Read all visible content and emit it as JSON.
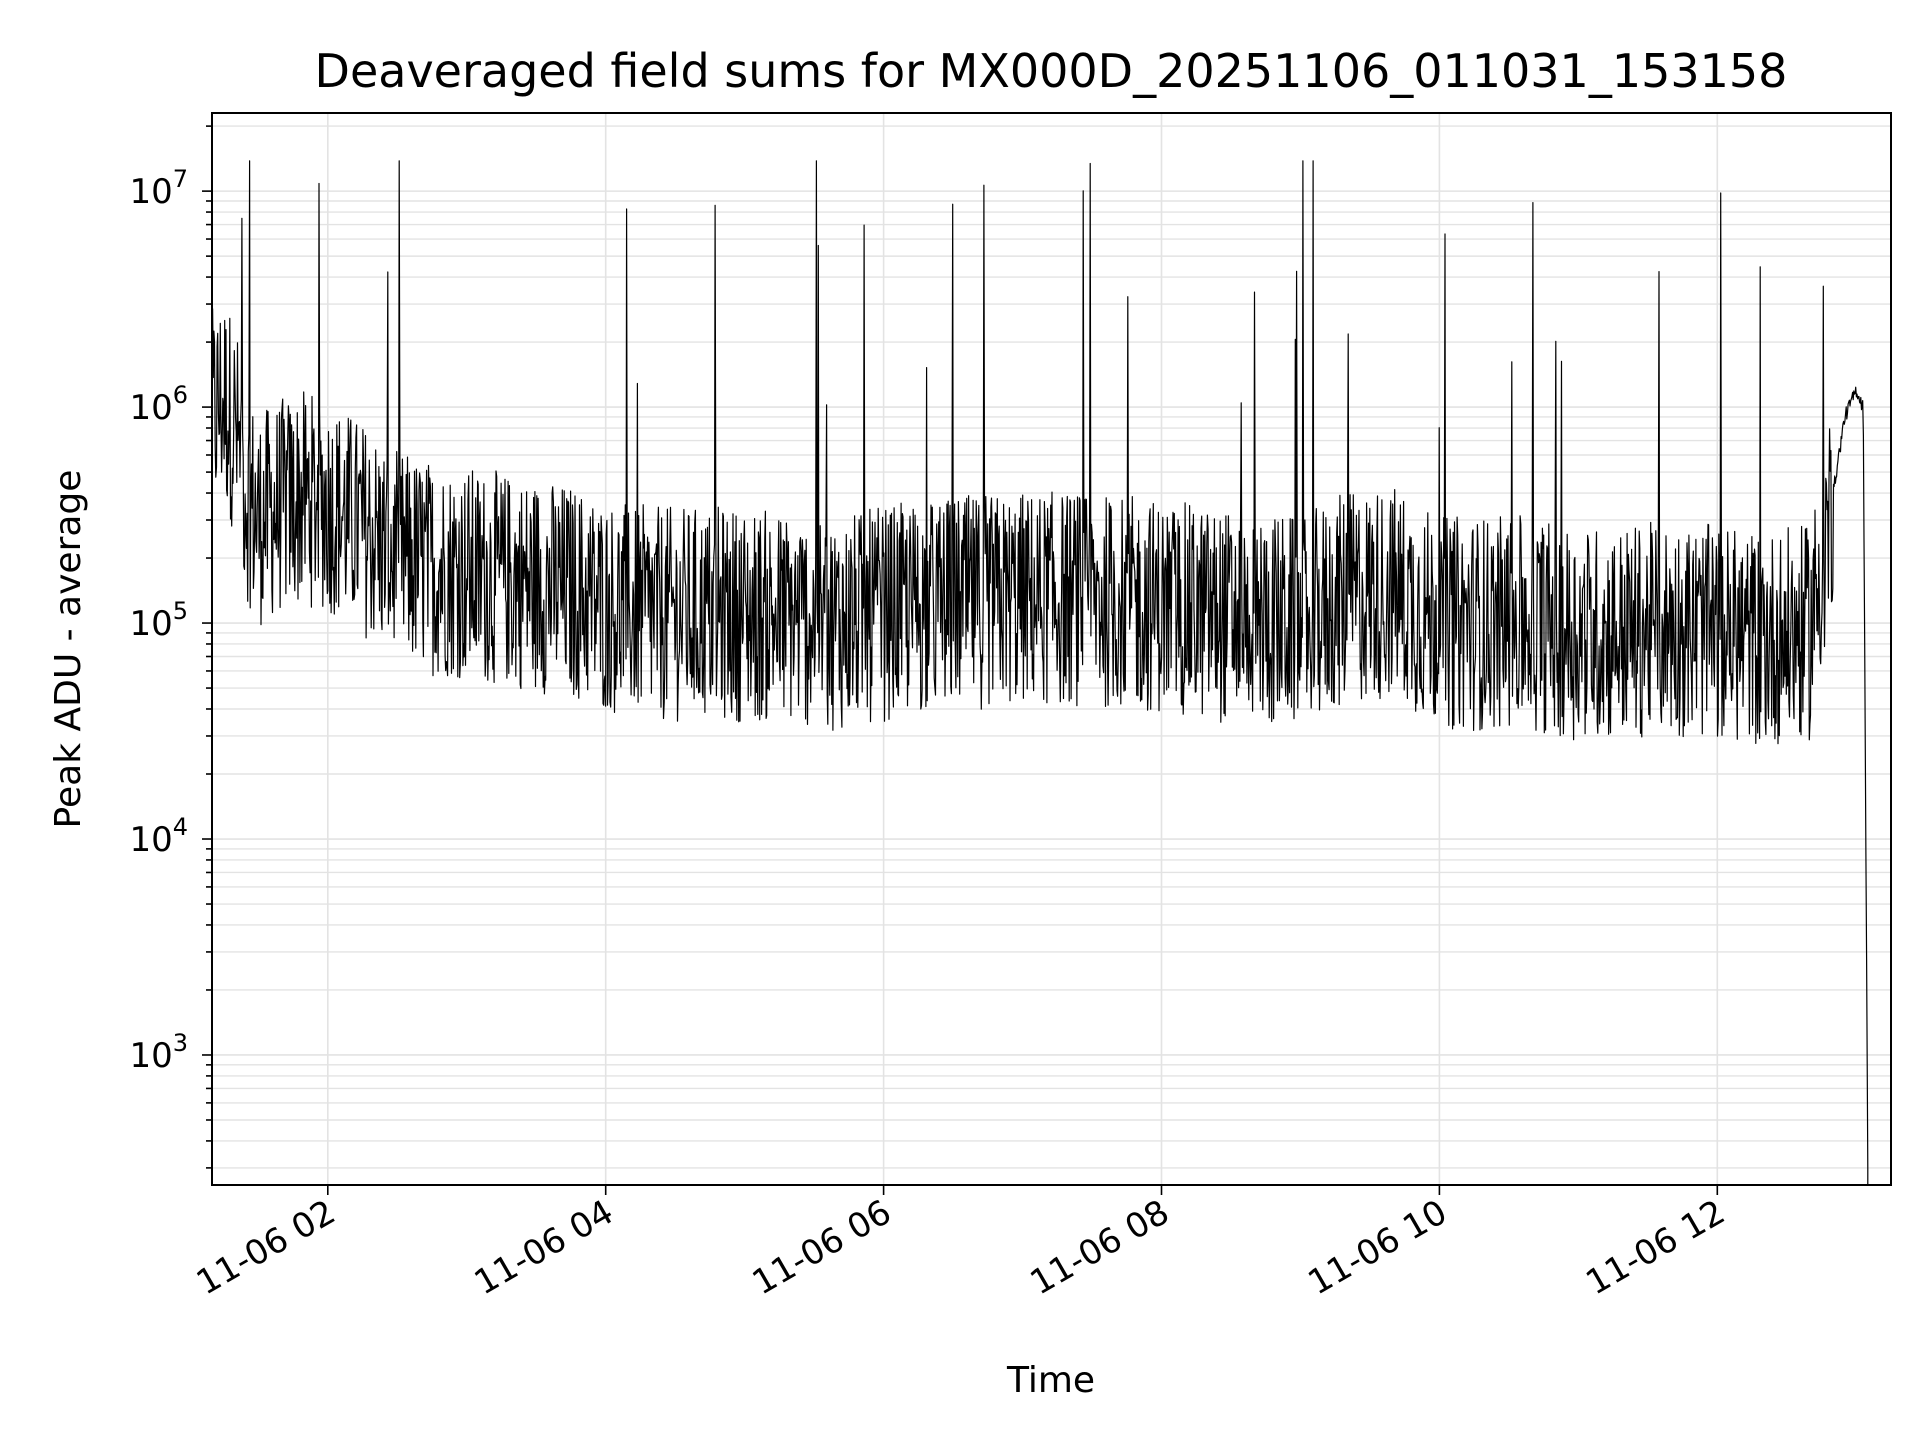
{
  "chart_data": {
    "type": "line",
    "title": "Deaveraged field sums for MX000D_20251106_011031_153158",
    "xlabel": "Time",
    "ylabel": "Peak ADU - average",
    "yscale": "log",
    "ylim": [
      250,
      23000000
    ],
    "xlim": [
      "2025-11-06 01:10",
      "2025-11-06 13:15"
    ],
    "grid": true,
    "legend": "none",
    "line_color": "#000000",
    "grid_color": "#e3e3e3",
    "x_ticks": [
      {
        "value": "2025-11-06 02:00",
        "label": "11-06 02"
      },
      {
        "value": "2025-11-06 04:00",
        "label": "11-06 04"
      },
      {
        "value": "2025-11-06 06:00",
        "label": "11-06 06"
      },
      {
        "value": "2025-11-06 08:00",
        "label": "11-06 08"
      },
      {
        "value": "2025-11-06 10:00",
        "label": "11-06 10"
      },
      {
        "value": "2025-11-06 12:00",
        "label": "11-06 12"
      }
    ],
    "y_ticks": [
      {
        "value": 1000,
        "base": "10",
        "exp": "3"
      },
      {
        "value": 10000,
        "base": "10",
        "exp": "4"
      },
      {
        "value": 100000,
        "base": "10",
        "exp": "5"
      },
      {
        "value": 1000000,
        "base": "10",
        "exp": "6"
      },
      {
        "value": 10000000,
        "base": "10",
        "exp": "7"
      }
    ],
    "series": [
      {
        "x": [
          "2025-11-06 01:10",
          "2025-11-06 01:15",
          "2025-11-06 01:20",
          "2025-11-06 01:25",
          "2025-11-06 01:30",
          "2025-11-06 01:40",
          "2025-11-06 01:50",
          "2025-11-06 02:00",
          "2025-11-06 02:10",
          "2025-11-06 02:20",
          "2025-11-06 02:30",
          "2025-11-06 02:45",
          "2025-11-06 03:00",
          "2025-11-06 03:15",
          "2025-11-06 03:30",
          "2025-11-06 03:45",
          "2025-11-06 04:00",
          "2025-11-06 04:20",
          "2025-11-06 04:40",
          "2025-11-06 05:00",
          "2025-11-06 05:20",
          "2025-11-06 05:40",
          "2025-11-06 06:00",
          "2025-11-06 06:20",
          "2025-11-06 06:40",
          "2025-11-06 07:00",
          "2025-11-06 07:20",
          "2025-11-06 07:40",
          "2025-11-06 08:00",
          "2025-11-06 08:20",
          "2025-11-06 08:40",
          "2025-11-06 09:00",
          "2025-11-06 09:20",
          "2025-11-06 09:40",
          "2025-11-06 10:00",
          "2025-11-06 10:20",
          "2025-11-06 10:40",
          "2025-11-06 11:00",
          "2025-11-06 11:20",
          "2025-11-06 11:40",
          "2025-11-06 12:00",
          "2025-11-06 12:20",
          "2025-11-06 12:40",
          "2025-11-06 12:50",
          "2025-11-06 12:55",
          "2025-11-06 13:00",
          "2025-11-06 13:03",
          "2025-11-06 13:05"
        ],
        "y": [
          900000,
          1100000,
          800000,
          400000,
          300000,
          350000,
          380000,
          350000,
          300000,
          250000,
          200000,
          180000,
          170000,
          160000,
          150000,
          140000,
          120000,
          110000,
          110000,
          110000,
          105000,
          100000,
          110000,
          120000,
          125000,
          130000,
          130000,
          125000,
          120000,
          110000,
          105000,
          100000,
          130000,
          140000,
          100000,
          100000,
          100000,
          90000,
          90000,
          95000,
          90000,
          85000,
          90000,
          400000,
          900000,
          1200000,
          1000000,
          300
        ]
      }
    ]
  }
}
